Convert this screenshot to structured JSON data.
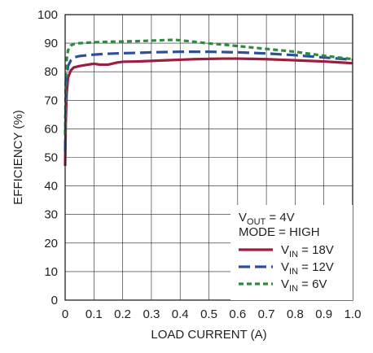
{
  "chart_data": {
    "type": "line",
    "title": "",
    "xlabel": "LOAD CURRENT (A)",
    "ylabel": "EFFICIENCY (%)",
    "xlim": [
      0,
      1.0
    ],
    "ylim": [
      0,
      100
    ],
    "x_ticks": [
      "0",
      "0.1",
      "0.2",
      "0.3",
      "0.4",
      "0.5",
      "0.6",
      "0.7",
      "0.8",
      "0.9",
      "1.0"
    ],
    "y_ticks": [
      "0",
      "10",
      "20",
      "30",
      "40",
      "50",
      "60",
      "70",
      "80",
      "90",
      "100"
    ],
    "grid": true,
    "legend_position": "bottom-right",
    "annotations": [
      {
        "main": "V",
        "sub": "OUT",
        "rest": " = 4V"
      },
      {
        "main": "MODE = HIGH",
        "sub": "",
        "rest": ""
      }
    ],
    "series": [
      {
        "label_main": "V",
        "label_sub": "IN",
        "label_rest": " = 18V",
        "color": "#9e1c3f",
        "dash": "solid",
        "x": [
          0.0,
          0.002,
          0.005,
          0.01,
          0.02,
          0.03,
          0.05,
          0.08,
          0.1,
          0.12,
          0.15,
          0.18,
          0.2,
          0.25,
          0.3,
          0.35,
          0.4,
          0.45,
          0.5,
          0.55,
          0.6,
          0.65,
          0.7,
          0.75,
          0.8,
          0.85,
          0.9,
          0.95,
          1.0
        ],
        "y": [
          47,
          62,
          72,
          78,
          80.5,
          81.5,
          82,
          82.5,
          82.8,
          82.5,
          82.5,
          83.2,
          83.5,
          83.6,
          83.8,
          84.0,
          84.2,
          84.4,
          84.5,
          84.6,
          84.6,
          84.5,
          84.4,
          84.2,
          84.0,
          83.8,
          83.6,
          83.3,
          83.0
        ]
      },
      {
        "label_main": "V",
        "label_sub": "IN",
        "label_rest": " = 12V",
        "color": "#2e4f9e",
        "dash": "long-dash",
        "x": [
          0.0,
          0.002,
          0.005,
          0.01,
          0.02,
          0.03,
          0.05,
          0.08,
          0.1,
          0.15,
          0.2,
          0.25,
          0.3,
          0.35,
          0.4,
          0.45,
          0.5,
          0.55,
          0.6,
          0.65,
          0.7,
          0.75,
          0.8,
          0.85,
          0.9,
          0.95,
          1.0
        ],
        "y": [
          52,
          68,
          77,
          82,
          84,
          85,
          85.5,
          85.8,
          86.0,
          86.3,
          86.5,
          86.6,
          86.8,
          86.9,
          87.0,
          87.0,
          87.0,
          86.9,
          86.8,
          86.6,
          86.4,
          86.1,
          85.8,
          85.4,
          85.0,
          84.6,
          84.2
        ]
      },
      {
        "label_main": "V",
        "label_sub": "IN",
        "label_rest": " = 6V",
        "color": "#2e8b3d",
        "dash": "short-dash",
        "x": [
          0.0,
          0.002,
          0.005,
          0.01,
          0.02,
          0.03,
          0.05,
          0.08,
          0.1,
          0.15,
          0.2,
          0.25,
          0.3,
          0.35,
          0.38,
          0.4,
          0.45,
          0.5,
          0.55,
          0.6,
          0.65,
          0.7,
          0.75,
          0.8,
          0.85,
          0.9,
          0.95,
          1.0
        ],
        "y": [
          58,
          76,
          84,
          87.5,
          89.2,
          89.7,
          90.0,
          90.2,
          90.3,
          90.5,
          90.6,
          90.7,
          90.9,
          91.1,
          91.2,
          91.0,
          90.5,
          89.9,
          89.5,
          89.0,
          88.5,
          88.0,
          87.5,
          87.0,
          86.3,
          85.6,
          85.0,
          84.4
        ]
      }
    ]
  }
}
